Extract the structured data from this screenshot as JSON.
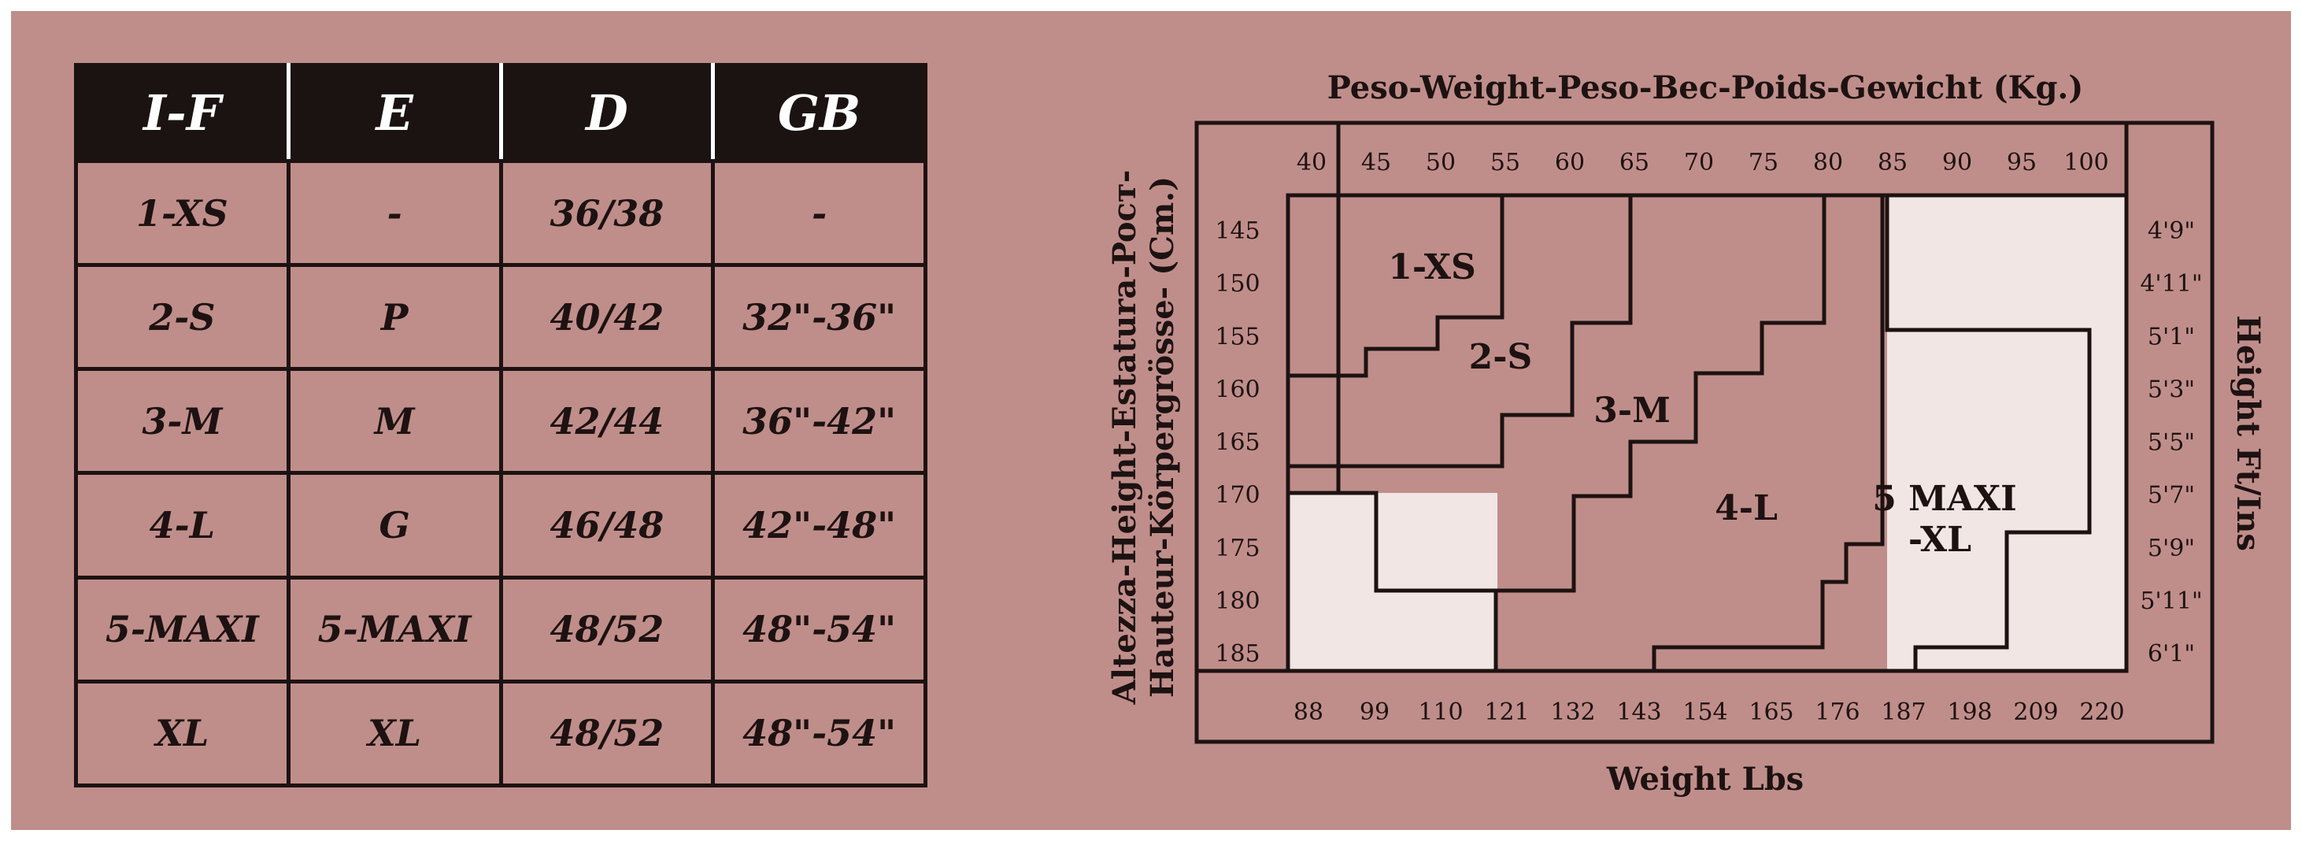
{
  "size_table": {
    "headers": [
      "I-F",
      "E",
      "D",
      "GB"
    ],
    "rows": [
      [
        "1-XS",
        "-",
        "36/38",
        "-"
      ],
      [
        "2-S",
        "P",
        "40/42",
        "32\"-36\""
      ],
      [
        "3-M",
        "M",
        "42/44",
        "36\"-42\""
      ],
      [
        "4-L",
        "G",
        "46/48",
        "42\"-48\""
      ],
      [
        "5-MAXI",
        "5-MAXI",
        "48/52",
        "48\"-54\""
      ],
      [
        "XL",
        "XL",
        "48/52",
        "48\"-54\""
      ]
    ]
  },
  "diagram": {
    "top_title": "Peso-Weight-Peso-Bec-Poids-Gewicht (Kg.)",
    "left_title_line1": "Altezza-Height-Estatura-Pocт-",
    "left_title_line2": "Hauteur-Körpergrösse- (Cm.)",
    "right_title": "Height Ft/Ins",
    "bottom_title": "Weight Lbs",
    "kg_ticks": [
      "40",
      "45",
      "50",
      "55",
      "60",
      "65",
      "70",
      "75",
      "80",
      "85",
      "90",
      "95",
      "100"
    ],
    "lbs_ticks": [
      "88",
      "99",
      "110",
      "121",
      "132",
      "143",
      "154",
      "165",
      "176",
      "187",
      "198",
      "209",
      "220"
    ],
    "cm_ticks": [
      "145",
      "150",
      "155",
      "160",
      "165",
      "170",
      "175",
      "180",
      "185"
    ],
    "ftin_ticks": [
      "4'9\"",
      "4'11\"",
      "5'1\"",
      "5'3\"",
      "5'5\"",
      "5'7\"",
      "5'9\"",
      "5'11\"",
      "6'1\""
    ],
    "region_labels": {
      "xs": "1-XS",
      "s": "2-S",
      "m": "3-M",
      "l": "4-L",
      "xl_line1": "5 MAXI",
      "xl_line2": "-XL"
    },
    "colors": {
      "background": "#c08e8a",
      "unused_region": "#f1e6e4",
      "ink": "#1d1212"
    }
  }
}
